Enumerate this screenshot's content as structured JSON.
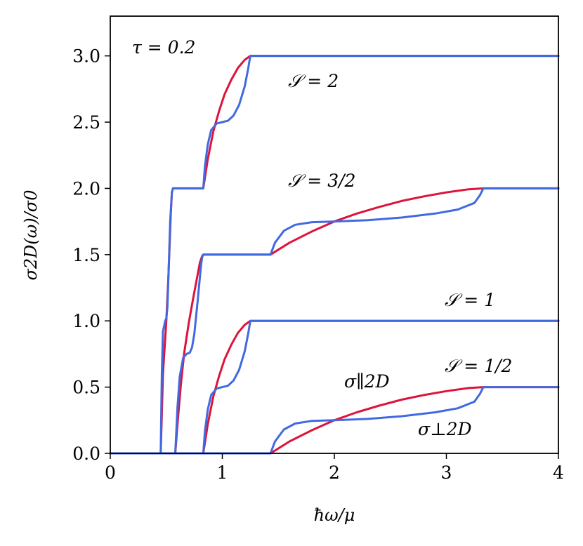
{
  "chart_data": {
    "type": "line",
    "xlabel": "ħω/μ",
    "ylabel": "σ2D(ω)/σ0",
    "xlim": [
      0,
      4
    ],
    "ylim": [
      0,
      3.3
    ],
    "x_ticks": [
      "0",
      "1",
      "2",
      "3",
      "4"
    ],
    "y_ticks": [
      "0.0",
      "0.5",
      "1.0",
      "1.5",
      "2.0",
      "2.5",
      "3.0"
    ],
    "grid": false,
    "colors": {
      "parallel": "#dc143c",
      "perpendicular": "#4169e1"
    },
    "annotations": {
      "tau": "τ = 0.2",
      "s2": "𝒮 = 2",
      "s32": "𝒮 = 3/2",
      "s1": "𝒮 = 1",
      "s12": "𝒮 = 1/2",
      "sigma_par": "σ∥2D",
      "sigma_perp": "σ⊥2D"
    },
    "series": [
      {
        "family": "𝒮 = 1/2",
        "component": "parallel",
        "x": [
          0,
          1.43,
          1.6,
          1.8,
          2.0,
          2.2,
          2.4,
          2.6,
          2.8,
          3.0,
          3.2,
          3.33,
          4.0
        ],
        "y": [
          0,
          0,
          0.09,
          0.175,
          0.25,
          0.31,
          0.36,
          0.405,
          0.44,
          0.47,
          0.493,
          0.5,
          0.5
        ]
      },
      {
        "family": "𝒮 = 1/2",
        "component": "perpendicular",
        "x": [
          0,
          1.43,
          1.47,
          1.55,
          1.65,
          1.8,
          2.0,
          2.3,
          2.6,
          2.9,
          3.1,
          3.25,
          3.3,
          3.33,
          4.0
        ],
        "y": [
          0,
          0,
          0.09,
          0.18,
          0.225,
          0.245,
          0.25,
          0.26,
          0.28,
          0.31,
          0.34,
          0.39,
          0.45,
          0.5,
          0.5
        ]
      },
      {
        "family": "𝒮 = 1",
        "component": "parallel",
        "x": [
          0,
          0.83,
          0.87,
          0.92,
          0.97,
          1.02,
          1.08,
          1.14,
          1.2,
          1.25,
          4.0
        ],
        "y": [
          0,
          0,
          0.22,
          0.43,
          0.58,
          0.71,
          0.82,
          0.91,
          0.97,
          1.0,
          1.0
        ]
      },
      {
        "family": "𝒮 = 1",
        "component": "perpendicular",
        "x": [
          0,
          0.83,
          0.845,
          0.87,
          0.9,
          0.95,
          1.0,
          1.05,
          1.1,
          1.15,
          1.2,
          1.23,
          1.25,
          4.0
        ],
        "y": [
          0,
          0,
          0.17,
          0.33,
          0.44,
          0.49,
          0.5,
          0.51,
          0.55,
          0.63,
          0.77,
          0.9,
          1.0,
          1.0
        ]
      },
      {
        "family": "𝒮 = 3/2",
        "component": "parallel",
        "x": [
          0,
          0.58,
          0.6,
          0.63,
          0.66,
          0.7,
          0.74,
          0.78,
          0.8,
          0.82,
          0.83,
          1.43,
          1.6,
          1.8,
          2.0,
          2.2,
          2.4,
          2.6,
          2.8,
          3.0,
          3.2,
          3.33,
          4.0
        ],
        "y": [
          0,
          0,
          0.22,
          0.52,
          0.76,
          0.98,
          1.17,
          1.35,
          1.44,
          1.49,
          1.5,
          1.5,
          1.59,
          1.675,
          1.75,
          1.81,
          1.86,
          1.905,
          1.94,
          1.97,
          1.993,
          2.0,
          2.0
        ]
      },
      {
        "family": "𝒮 = 3/2",
        "component": "perpendicular",
        "x": [
          0,
          0.58,
          0.6,
          0.62,
          0.65,
          0.68,
          0.71,
          0.73,
          0.75,
          0.78,
          0.81,
          0.82,
          0.83,
          1.43,
          1.47,
          1.55,
          1.65,
          1.8,
          2.0,
          2.3,
          2.6,
          2.9,
          3.1,
          3.25,
          3.3,
          3.33,
          4.0
        ],
        "y": [
          0,
          0,
          0.35,
          0.58,
          0.72,
          0.75,
          0.76,
          0.8,
          0.9,
          1.15,
          1.42,
          1.48,
          1.5,
          1.5,
          1.59,
          1.68,
          1.725,
          1.745,
          1.75,
          1.76,
          1.78,
          1.81,
          1.84,
          1.89,
          1.95,
          2.0,
          2.0
        ]
      },
      {
        "family": "𝒮 = 2",
        "component": "parallel",
        "x": [
          0,
          0.45,
          0.47,
          0.5,
          0.52,
          0.54,
          0.55,
          0.56,
          0.83,
          0.87,
          0.92,
          0.97,
          1.02,
          1.08,
          1.14,
          1.2,
          1.25,
          4.0
        ],
        "y": [
          0,
          0,
          0.6,
          1.0,
          1.35,
          1.8,
          1.97,
          2.0,
          2.0,
          2.22,
          2.43,
          2.58,
          2.71,
          2.82,
          2.91,
          2.97,
          3.0,
          3.0
        ]
      },
      {
        "family": "𝒮 = 2",
        "component": "perpendicular",
        "x": [
          0,
          0.45,
          0.46,
          0.47,
          0.49,
          0.5,
          0.51,
          0.52,
          0.535,
          0.55,
          0.56,
          0.83,
          0.845,
          0.87,
          0.9,
          0.95,
          1.0,
          1.05,
          1.1,
          1.15,
          1.2,
          1.23,
          1.25,
          4.0
        ],
        "y": [
          0,
          0,
          0.6,
          0.92,
          1.0,
          1.02,
          1.1,
          1.35,
          1.75,
          1.97,
          2.0,
          2.0,
          2.17,
          2.33,
          2.44,
          2.49,
          2.5,
          2.51,
          2.55,
          2.63,
          2.77,
          2.9,
          3.0,
          3.0
        ]
      }
    ]
  }
}
